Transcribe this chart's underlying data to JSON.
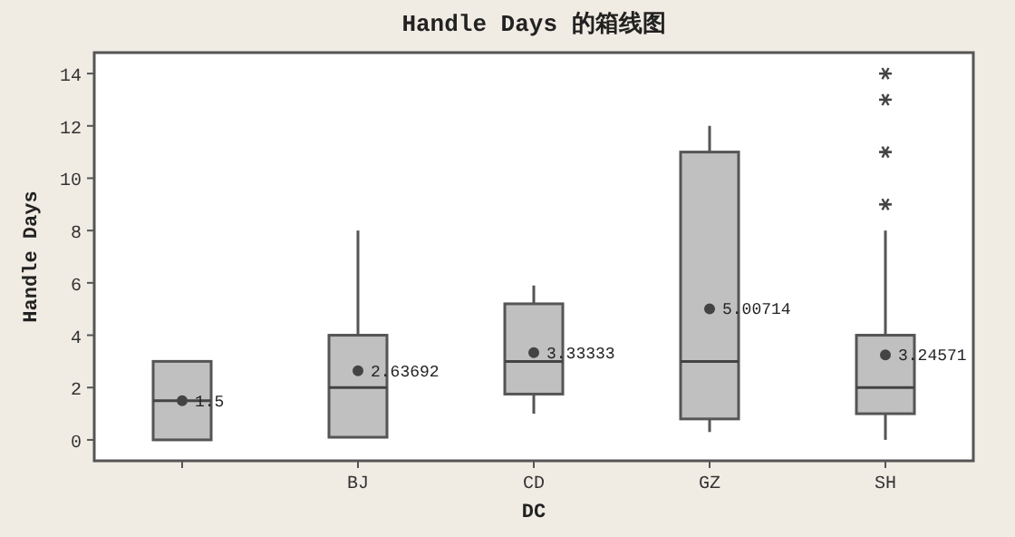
{
  "chart_data": {
    "type": "box",
    "title": "Handle Days 的箱线图",
    "xlabel": "DC",
    "ylabel": "Handle Days",
    "categories": [
      null,
      "BJ",
      "CD",
      "GZ",
      "SH"
    ],
    "boxes": [
      {
        "low": 0,
        "q1": 0,
        "median": 1.5,
        "q3": 3,
        "high": 3,
        "mean": 1.5
      },
      {
        "low": 0.1,
        "q1": 0.1,
        "median": 2,
        "q3": 4,
        "high": 8,
        "mean": 2.63692
      },
      {
        "low": 1,
        "q1": 1.75,
        "median": 3,
        "q3": 5.2,
        "high": 5.9,
        "mean": 3.33333
      },
      {
        "low": 0.3,
        "q1": 0.8,
        "median": 3,
        "q3": 11,
        "high": 12,
        "mean": 5.00714
      },
      {
        "low": 0,
        "q1": 1,
        "median": 2,
        "q3": 4,
        "high": 8,
        "mean": 3.24571,
        "outliers": [
          9,
          11,
          13,
          14
        ]
      }
    ],
    "annotations": [
      "1.5",
      "2.63692",
      "3.33333",
      "5.00714",
      "3.24571"
    ],
    "color": "#c0c0c0",
    "ylim": [
      -0.8,
      14.8
    ],
    "yticks": [
      0,
      2,
      4,
      6,
      8,
      10,
      12,
      14
    ],
    "marker": "star"
  }
}
